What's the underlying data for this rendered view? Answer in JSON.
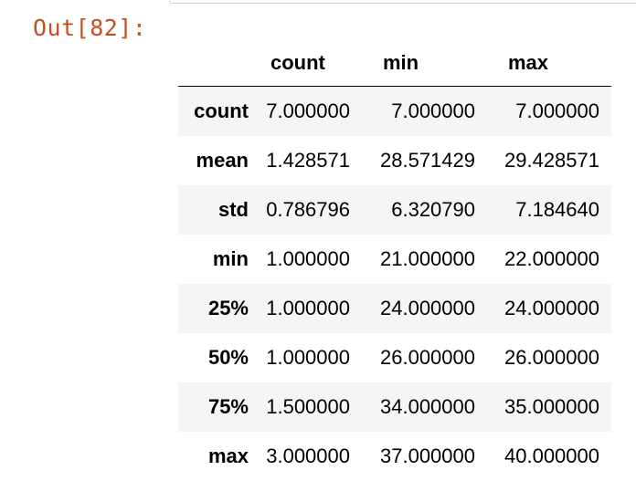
{
  "output": {
    "prompt": "Out[82]:"
  },
  "table": {
    "columns": [
      "count",
      "min",
      "max"
    ],
    "rows": [
      {
        "index": "count",
        "count": "7.000000",
        "min": "7.000000",
        "max": "7.000000"
      },
      {
        "index": "mean",
        "count": "1.428571",
        "min": "28.571429",
        "max": "29.428571"
      },
      {
        "index": "std",
        "count": "0.786796",
        "min": "6.320790",
        "max": "7.184640"
      },
      {
        "index": "min",
        "count": "1.000000",
        "min": "21.000000",
        "max": "22.000000"
      },
      {
        "index": "25%",
        "count": "1.000000",
        "min": "24.000000",
        "max": "24.000000"
      },
      {
        "index": "50%",
        "count": "1.000000",
        "min": "26.000000",
        "max": "26.000000"
      },
      {
        "index": "75%",
        "count": "1.500000",
        "min": "34.000000",
        "max": "35.000000"
      },
      {
        "index": "max",
        "count": "3.000000",
        "min": "37.000000",
        "max": "40.000000"
      }
    ]
  },
  "colors": {
    "prompt": "#c5501f",
    "stripe": "#f5f5f5"
  }
}
